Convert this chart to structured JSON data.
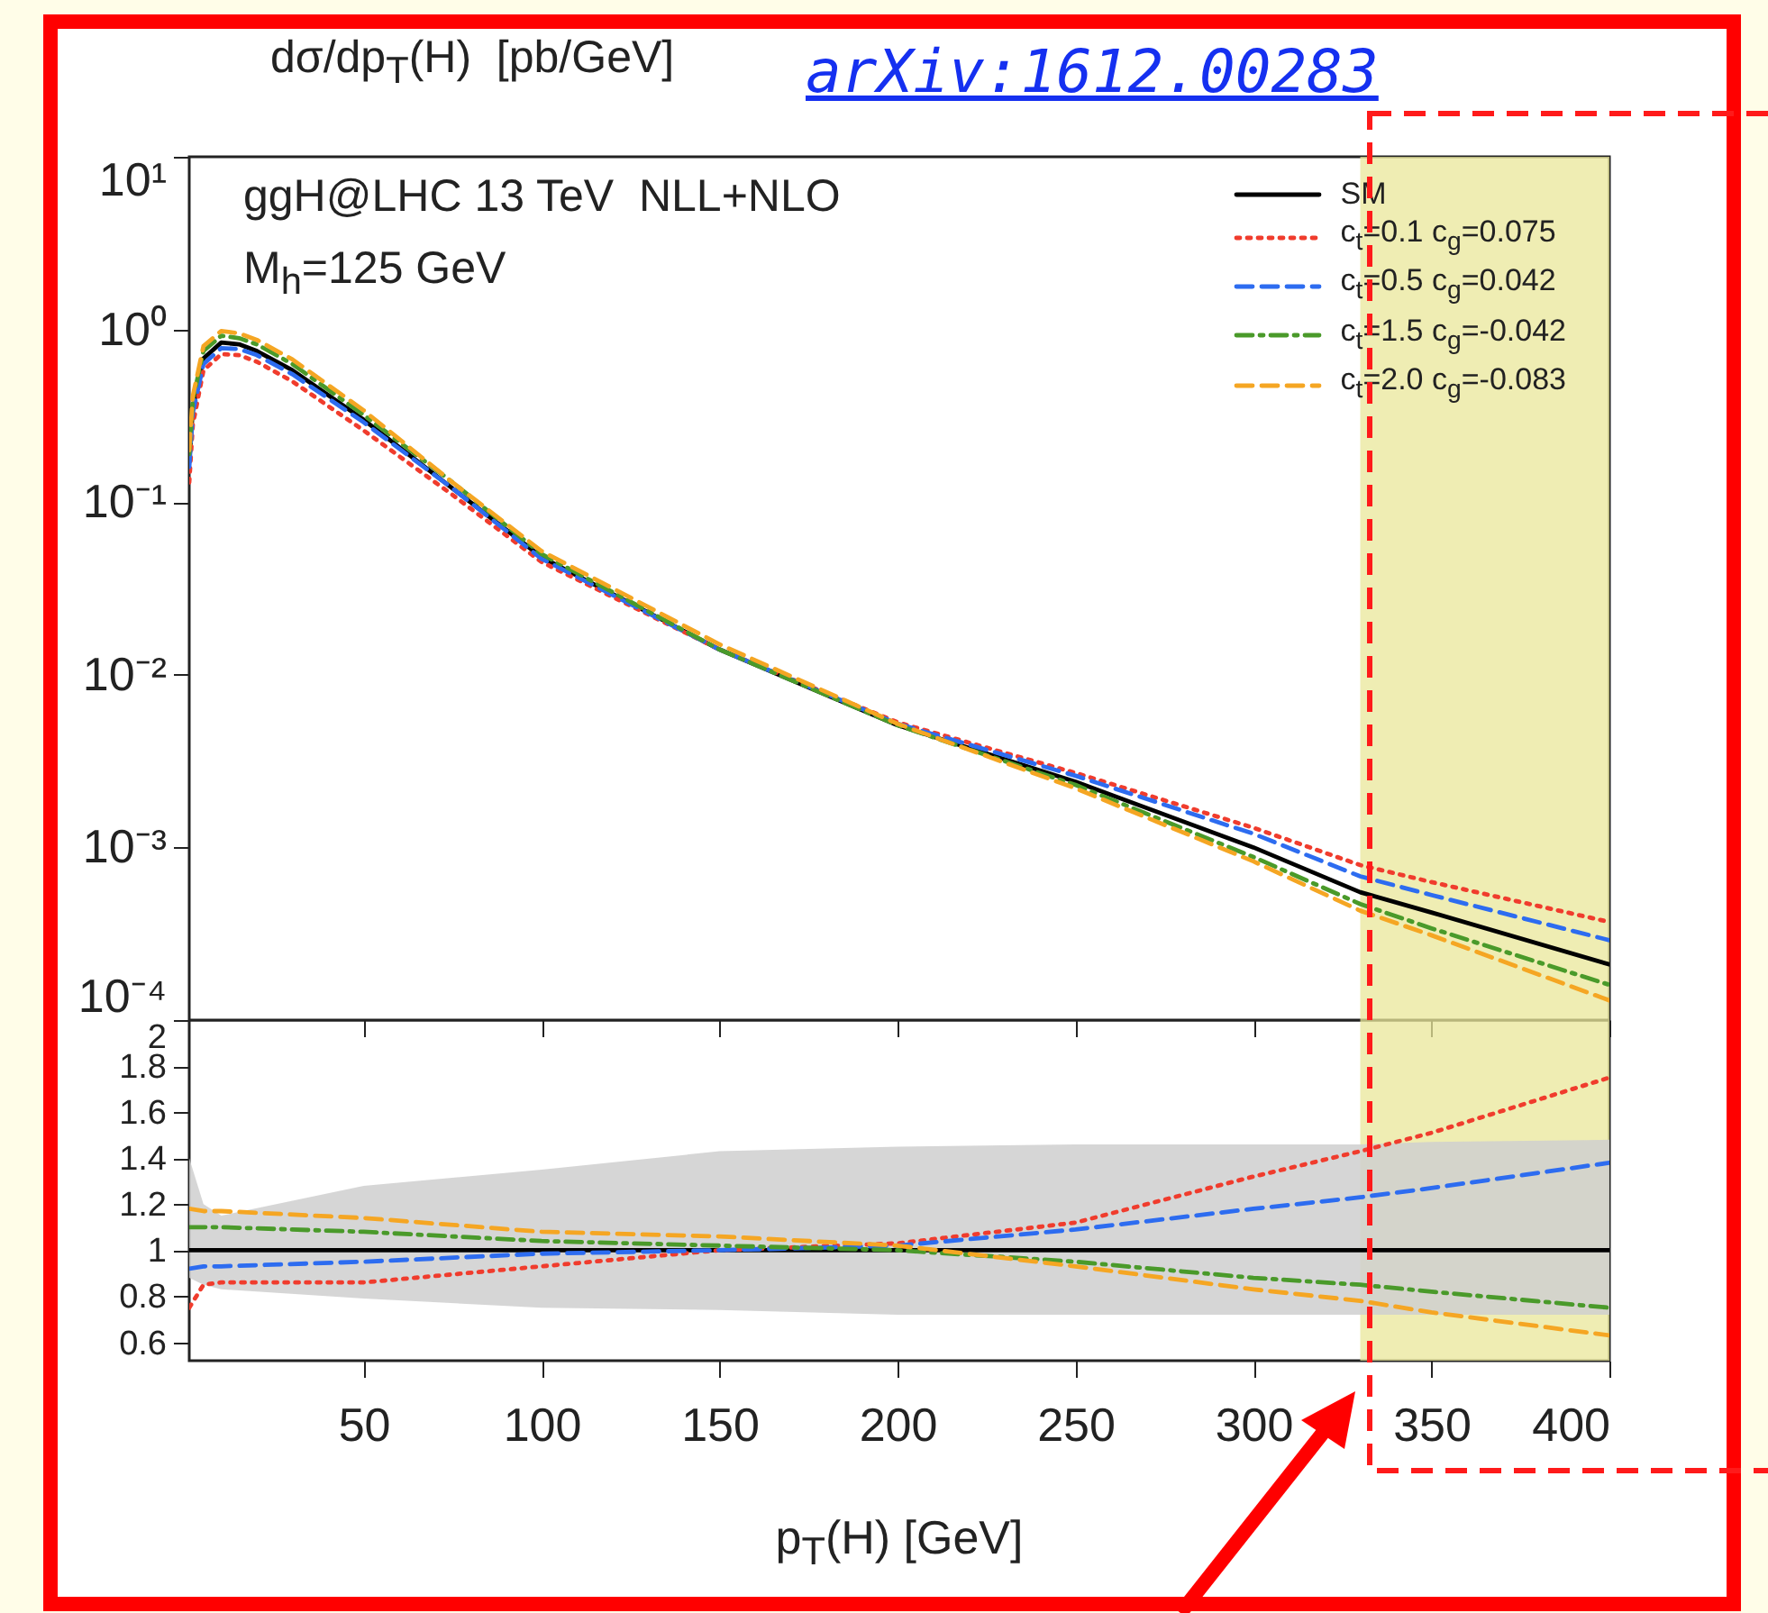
{
  "chart_data": [
    {
      "type": "line",
      "ylabel": "dσ/dp$_{T}$(H)  [pb/GeV]",
      "annotations": [
        "ggH@LHC 13 TeV  NLL+NLO",
        "M$_{h}$=125 GeV",
        "arXiv:1612.00283"
      ],
      "x": [
        1,
        2,
        5,
        10,
        15,
        20,
        30,
        50,
        75,
        100,
        150,
        200,
        250,
        300,
        330,
        350,
        400
      ],
      "series": [
        {
          "name": "SM",
          "color": "#000000",
          "line_style": "solid",
          "values": [
            0.17,
            0.35,
            0.68,
            0.84,
            0.82,
            0.75,
            0.58,
            0.3,
            0.12,
            0.048,
            0.014,
            0.0051,
            0.0024,
            0.001,
            0.00055,
            0.00042,
            0.00021
          ]
        },
        {
          "name": "c$_{t}$=0.1 c$_{g}$=0.075",
          "color": "#f03c2d",
          "line_style": "dotted",
          "values": [
            0.13,
            0.28,
            0.58,
            0.72,
            0.71,
            0.65,
            0.5,
            0.26,
            0.11,
            0.045,
            0.014,
            0.0053,
            0.0027,
            0.0013,
            0.00079,
            0.00063,
            0.00037
          ]
        },
        {
          "name": "c$_{t}$=0.5 c$_{g}$=0.042",
          "color": "#2d6cf0",
          "line_style": "dashed",
          "values": [
            0.16,
            0.33,
            0.63,
            0.78,
            0.77,
            0.71,
            0.55,
            0.29,
            0.12,
            0.047,
            0.014,
            0.0052,
            0.0026,
            0.0012,
            0.00068,
            0.00053,
            0.00029
          ]
        },
        {
          "name": "c$_{t}$=1.5 c$_{g}$=-0.042",
          "color": "#4a9a2a",
          "line_style": "dashdot",
          "values": [
            0.19,
            0.39,
            0.75,
            0.92,
            0.89,
            0.82,
            0.63,
            0.32,
            0.13,
            0.05,
            0.014,
            0.0051,
            0.0023,
            0.00088,
            0.00047,
            0.00034,
            0.00016
          ]
        },
        {
          "name": "c$_{t}$=2.0 c$_{g}$=-0.083",
          "color": "#f5a623",
          "line_style": "dashed",
          "values": [
            0.2,
            0.41,
            0.8,
            0.98,
            0.95,
            0.87,
            0.67,
            0.34,
            0.13,
            0.052,
            0.015,
            0.0052,
            0.0022,
            0.00083,
            0.00043,
            0.00031,
            0.00013
          ]
        }
      ],
      "xlim": [
        1,
        400
      ],
      "ylim": [
        0.0001,
        10
      ],
      "log": true,
      "xticks": [
        50,
        100,
        150,
        200,
        250,
        300,
        350,
        400
      ],
      "yticks": [
        {
          "value": 0.0001,
          "label": "10⁻⁴"
        },
        {
          "value": 0.001,
          "label": "10⁻³"
        },
        {
          "value": 0.01,
          "label": "10⁻²"
        },
        {
          "value": 0.1,
          "label": "10⁻¹"
        },
        {
          "value": 1,
          "label": "10⁰"
        },
        {
          "value": 10,
          "label": "10¹"
        }
      ],
      "tick_labels": "y",
      "legend": "top right",
      "bands": [
        {
          "axis": "x",
          "from": 330,
          "to": 400,
          "color": "#e9e79a"
        }
      ]
    },
    {
      "type": "line",
      "xlabel": "p$_{T}$(H) [GeV]",
      "x": [
        1,
        5,
        10,
        50,
        100,
        150,
        200,
        250,
        300,
        330,
        350,
        400
      ],
      "series": [
        {
          "color": "#000000",
          "line_style": "solid",
          "values": [
            1,
            1,
            1,
            1,
            1,
            1,
            1,
            1,
            1,
            1,
            1,
            1
          ],
          "lower": [
            0.88,
            0.85,
            0.83,
            0.79,
            0.75,
            0.74,
            0.72,
            0.72,
            0.72,
            0.72,
            0.72,
            0.72
          ],
          "upper": [
            1.4,
            1.2,
            1.15,
            1.28,
            1.35,
            1.43,
            1.45,
            1.46,
            1.46,
            1.46,
            1.47,
            1.48
          ]
        },
        {
          "color": "#f03c2d",
          "line_style": "dotted",
          "values": [
            0.75,
            0.85,
            0.86,
            0.86,
            0.93,
            1.0,
            1.03,
            1.12,
            1.32,
            1.43,
            1.51,
            1.75
          ]
        },
        {
          "color": "#2d6cf0",
          "line_style": "dashed",
          "values": [
            0.92,
            0.93,
            0.93,
            0.95,
            0.985,
            1.0,
            1.02,
            1.09,
            1.18,
            1.23,
            1.27,
            1.38
          ]
        },
        {
          "color": "#4a9a2a",
          "line_style": "dashdot",
          "values": [
            1.1,
            1.1,
            1.1,
            1.08,
            1.04,
            1.02,
            1.0,
            0.95,
            0.88,
            0.85,
            0.82,
            0.75
          ]
        },
        {
          "color": "#f5a623",
          "line_style": "dashed",
          "values": [
            1.18,
            1.17,
            1.17,
            1.14,
            1.08,
            1.06,
            1.02,
            0.93,
            0.83,
            0.78,
            0.73,
            0.63
          ]
        }
      ],
      "xlim": [
        1,
        400
      ],
      "ylim": [
        0.52,
        2
      ],
      "xticks": [
        50,
        100,
        150,
        200,
        250,
        300,
        350,
        400
      ],
      "yticks": [
        0.6,
        0.8,
        1,
        1.2,
        1.4,
        1.6,
        1.8,
        2
      ],
      "bands": [
        {
          "axis": "x",
          "from": 330,
          "to": 400,
          "color": "#e9e79a"
        }
      ]
    }
  ]
}
